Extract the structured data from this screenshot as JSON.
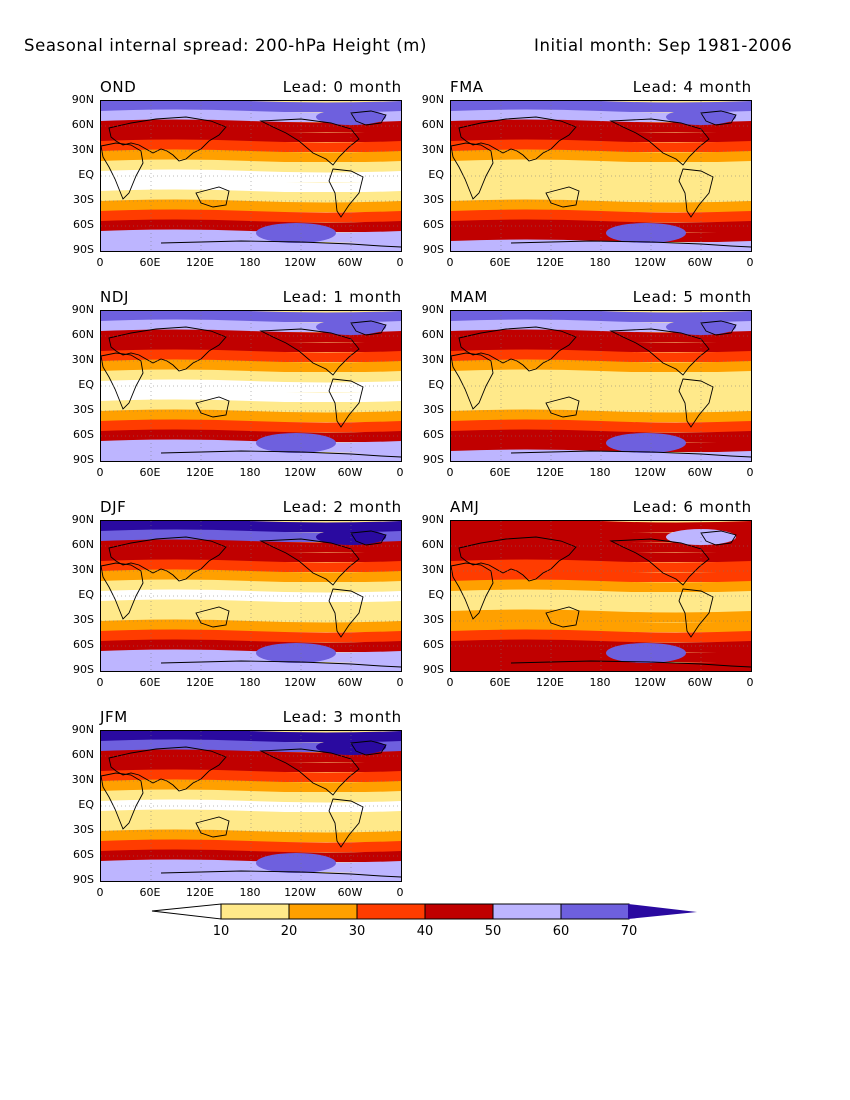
{
  "title": "Seasonal internal spread: 200-hPa Height (m)",
  "initial_month": "Initial month: Sep 1981-2006",
  "latitude_labels": [
    "90N",
    "60N",
    "30N",
    "EQ",
    "30S",
    "60S",
    "90S"
  ],
  "longitude_labels": [
    "0",
    "60E",
    "120E",
    "180",
    "120W",
    "60W",
    "0"
  ],
  "panels": [
    {
      "season": "OND",
      "lead": "Lead: 0 month",
      "pattern": "low"
    },
    {
      "season": "FMA",
      "lead": "Lead: 4 month",
      "pattern": "mid"
    },
    {
      "season": "NDJ",
      "lead": "Lead: 1 month",
      "pattern": "low"
    },
    {
      "season": "MAM",
      "lead": "Lead: 5 month",
      "pattern": "mid"
    },
    {
      "season": "DJF",
      "lead": "Lead: 2 month",
      "pattern": "midlow"
    },
    {
      "season": "AMJ",
      "lead": "Lead: 6 month",
      "pattern": "high"
    },
    {
      "season": "JFM",
      "lead": "Lead: 3 month",
      "pattern": "midlow"
    }
  ],
  "colorbar": {
    "labels": [
      "10",
      "20",
      "30",
      "40",
      "50",
      "60",
      "70"
    ],
    "colors": [
      "#ffffff",
      "#ffe98a",
      "#ffa000",
      "#ff3c00",
      "#c00000",
      "#bdb5ff",
      "#6e60de",
      "#2a0aa0"
    ]
  }
}
